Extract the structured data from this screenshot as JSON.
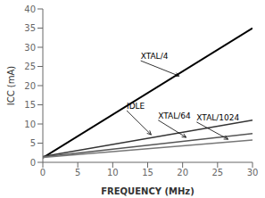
{
  "chart_data": {
    "type": "line",
    "xlabel": "FREQUENCY (MHz)",
    "ylabel": "ICC (mA)",
    "x": [
      0,
      30
    ],
    "series": [
      {
        "color": "#000000",
        "values": [
          1.2,
          35.0
        ]
      },
      {
        "color": "#333333",
        "values": [
          1.5,
          11.0
        ]
      },
      {
        "color": "#555555",
        "values": [
          1.4,
          7.5
        ]
      },
      {
        "color": "#777777",
        "values": [
          1.3,
          5.8
        ]
      }
    ],
    "xlim": [
      0,
      30
    ],
    "ylim": [
      0,
      40
    ],
    "xticks": [
      0,
      5,
      10,
      15,
      20,
      25,
      30
    ],
    "yticks": [
      0,
      5,
      10,
      15,
      20,
      25,
      30,
      35,
      40
    ],
    "annotations": [
      {
        "text": "XTAL/4",
        "xy": [
          19.5,
          22.5
        ],
        "xytext": [
          14.0,
          26.5
        ]
      },
      {
        "text": "IDLE",
        "xy": [
          15.5,
          7.2
        ],
        "xytext": [
          12.0,
          13.5
        ]
      },
      {
        "text": "XTAL/64",
        "xy": [
          20.5,
          6.5
        ],
        "xytext": [
          16.5,
          11.0
        ]
      },
      {
        "text": "XTAL/1024",
        "xy": [
          26.5,
          6.0
        ],
        "xytext": [
          22.0,
          10.5
        ]
      }
    ]
  }
}
